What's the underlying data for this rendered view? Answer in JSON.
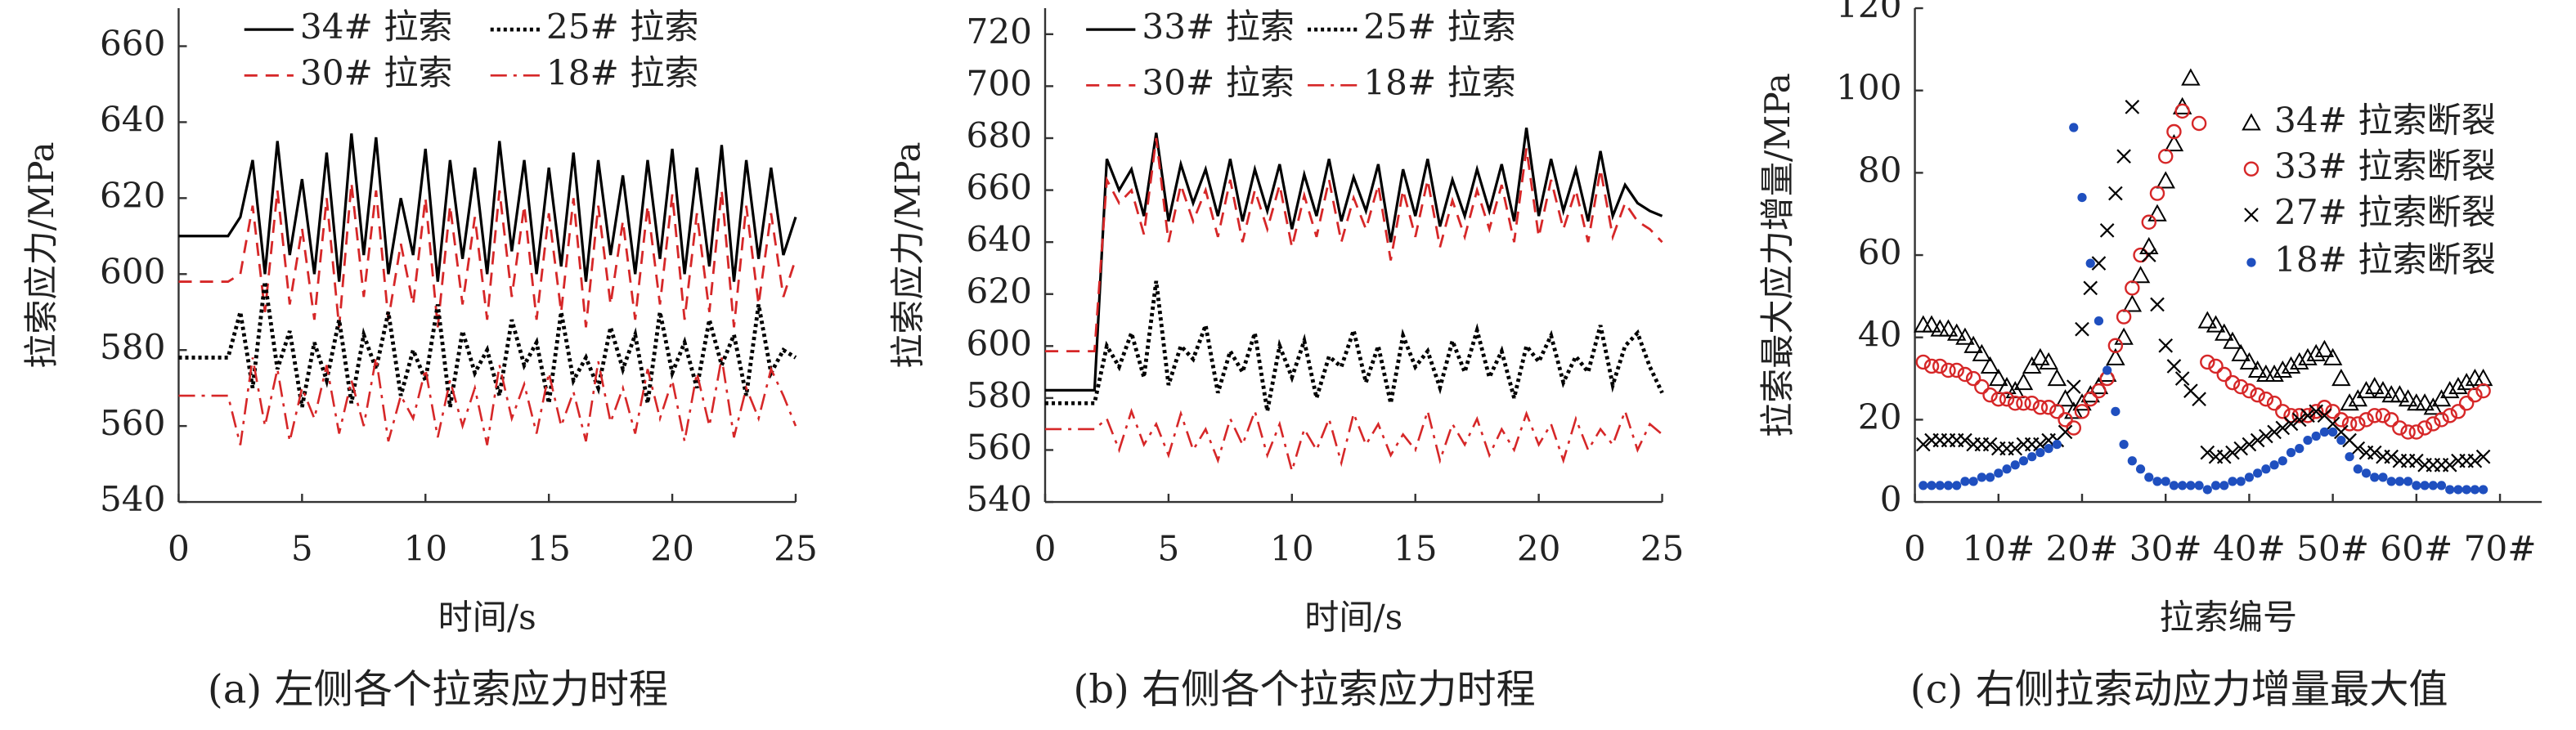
{
  "chart_data": [
    {
      "type": "line",
      "caption": "(a) 左侧各个拉索应力时程",
      "xlabel": "时间/s",
      "ylabel": "拉索应力/MPa",
      "xlim": [
        0,
        25
      ],
      "xticks": [
        0,
        5,
        10,
        15,
        20,
        25
      ],
      "ylim": [
        540,
        670
      ],
      "yticks": [
        540,
        560,
        580,
        600,
        620,
        640,
        660
      ],
      "x": [
        0,
        0.5,
        1,
        1.5,
        2,
        2.5,
        3,
        3.5,
        4,
        4.5,
        5,
        5.5,
        6,
        6.5,
        7,
        7.5,
        8,
        8.5,
        9,
        9.5,
        10,
        10.5,
        11,
        11.5,
        12,
        12.5,
        13,
        13.5,
        14,
        14.5,
        15,
        15.5,
        16,
        16.5,
        17,
        17.5,
        18,
        18.5,
        19,
        19.5,
        20,
        20.5,
        21,
        21.5,
        22,
        22.5,
        23,
        23.5,
        24,
        24.5,
        25
      ],
      "series": [
        {
          "name": "34# 拉索",
          "color": "#000000",
          "dash": "solid",
          "values": [
            610,
            610,
            610,
            610,
            610,
            615,
            630,
            600,
            635,
            605,
            625,
            600,
            632,
            598,
            637,
            605,
            636,
            600,
            620,
            605,
            633,
            598,
            630,
            604,
            628,
            600,
            635,
            606,
            630,
            600,
            628,
            602,
            632,
            598,
            630,
            605,
            626,
            600,
            630,
            604,
            633,
            600,
            628,
            602,
            634,
            598,
            630,
            604,
            628,
            605,
            615
          ]
        },
        {
          "name": "30# 拉索",
          "color": "#d62728",
          "dash": "dashed",
          "values": [
            598,
            598,
            598,
            598,
            598,
            600,
            618,
            590,
            622,
            592,
            612,
            588,
            620,
            586,
            624,
            594,
            622,
            588,
            608,
            592,
            620,
            586,
            618,
            592,
            615,
            588,
            622,
            594,
            618,
            588,
            616,
            590,
            620,
            586,
            618,
            592,
            614,
            588,
            618,
            592,
            621,
            588,
            616,
            590,
            622,
            586,
            618,
            592,
            616,
            594,
            604
          ]
        },
        {
          "name": "25# 拉索",
          "color": "#000000",
          "dash": "dotted",
          "values": [
            578,
            578,
            578,
            578,
            578,
            590,
            570,
            598,
            575,
            585,
            565,
            582,
            572,
            588,
            566,
            584,
            575,
            590,
            568,
            580,
            572,
            592,
            565,
            585,
            574,
            580,
            568,
            588,
            576,
            582,
            566,
            590,
            572,
            578,
            570,
            586,
            575,
            584,
            566,
            590,
            574,
            582,
            570,
            588,
            576,
            584,
            568,
            592,
            574,
            580,
            578
          ]
        },
        {
          "name": "18# 拉索",
          "color": "#d62728",
          "dash": "dashdot",
          "values": [
            568,
            568,
            568,
            568,
            568,
            555,
            578,
            560,
            575,
            556,
            570,
            562,
            576,
            558,
            572,
            560,
            578,
            556,
            568,
            562,
            575,
            557,
            572,
            560,
            570,
            555,
            576,
            562,
            571,
            558,
            574,
            560,
            569,
            556,
            577,
            561,
            570,
            558,
            575,
            562,
            572,
            556,
            574,
            560,
            578,
            557,
            570,
            562,
            575,
            568,
            560
          ]
        }
      ]
    },
    {
      "type": "line",
      "caption": "(b) 右侧各个拉索应力时程",
      "xlabel": "时间/s",
      "ylabel": "拉索应力/MPa",
      "xlim": [
        0,
        25
      ],
      "xticks": [
        0,
        5,
        10,
        15,
        20,
        25
      ],
      "ylim": [
        540,
        730
      ],
      "yticks": [
        540,
        560,
        580,
        600,
        620,
        640,
        660,
        680,
        700,
        720
      ],
      "x": [
        0,
        0.5,
        1,
        1.5,
        2,
        2.5,
        3,
        3.5,
        4,
        4.5,
        5,
        5.5,
        6,
        6.5,
        7,
        7.5,
        8,
        8.5,
        9,
        9.5,
        10,
        10.5,
        11,
        11.5,
        12,
        12.5,
        13,
        13.5,
        14,
        14.5,
        15,
        15.5,
        16,
        16.5,
        17,
        17.5,
        18,
        18.5,
        19,
        19.5,
        20,
        20.5,
        21,
        21.5,
        22,
        22.5,
        23,
        23.5,
        24,
        24.5,
        25
      ],
      "series": [
        {
          "name": "33# 拉索",
          "color": "#000000",
          "dash": "solid",
          "values": [
            583,
            583,
            583,
            583,
            583,
            672,
            660,
            668,
            650,
            682,
            648,
            670,
            655,
            668,
            650,
            672,
            648,
            668,
            652,
            670,
            645,
            666,
            650,
            672,
            648,
            665,
            652,
            670,
            640,
            668,
            650,
            672,
            646,
            664,
            650,
            668,
            652,
            670,
            648,
            684,
            650,
            672,
            652,
            668,
            648,
            675,
            650,
            662,
            655,
            652,
            650
          ]
        },
        {
          "name": "30# 拉索",
          "color": "#d62728",
          "dash": "dashed",
          "values": [
            598,
            598,
            598,
            598,
            598,
            664,
            655,
            660,
            643,
            680,
            640,
            662,
            648,
            660,
            642,
            664,
            640,
            660,
            645,
            662,
            638,
            658,
            642,
            664,
            640,
            657,
            645,
            662,
            633,
            660,
            642,
            664,
            638,
            656,
            642,
            660,
            645,
            662,
            640,
            676,
            642,
            664,
            645,
            660,
            640,
            668,
            642,
            655,
            648,
            645,
            640
          ]
        },
        {
          "name": "25# 拉索",
          "color": "#000000",
          "dash": "dotted",
          "values": [
            578,
            578,
            578,
            578,
            578,
            600,
            592,
            605,
            588,
            625,
            585,
            600,
            595,
            608,
            582,
            598,
            590,
            605,
            575,
            600,
            588,
            602,
            580,
            596,
            592,
            606,
            586,
            600,
            578,
            604,
            592,
            598,
            584,
            602,
            590,
            606,
            588,
            598,
            580,
            600,
            594,
            604,
            586,
            596,
            590,
            608,
            585,
            600,
            605,
            592,
            582
          ]
        },
        {
          "name": "18# 拉索",
          "color": "#d62728",
          "dash": "dashdot",
          "values": [
            568,
            568,
            568,
            568,
            568,
            572,
            560,
            575,
            562,
            570,
            558,
            574,
            560,
            568,
            556,
            572,
            562,
            575,
            558,
            570,
            552,
            568,
            560,
            572,
            555,
            574,
            562,
            570,
            558,
            566,
            560,
            575,
            556,
            570,
            562,
            572,
            558,
            568,
            560,
            574,
            562,
            570,
            556,
            572,
            560,
            568,
            562,
            575,
            560,
            570,
            566
          ]
        }
      ]
    },
    {
      "type": "scatter",
      "caption": "(c) 右侧拉索动应力增量最大值",
      "xlabel": "拉索编号",
      "ylabel": "拉索最大应力增量/MPa",
      "xlim": [
        0,
        75
      ],
      "xticks": [
        0,
        {
          "value": 10,
          "label": "10#"
        },
        {
          "value": 20,
          "label": "20#"
        },
        {
          "value": 30,
          "label": "30#"
        },
        {
          "value": 40,
          "label": "40#"
        },
        {
          "value": 50,
          "label": "50#"
        },
        {
          "value": 60,
          "label": "60#"
        },
        {
          "value": 70,
          "label": "70#"
        }
      ],
      "ylim": [
        0,
        120
      ],
      "yticks": [
        0,
        20,
        40,
        60,
        80,
        100,
        120
      ],
      "x": [
        1,
        2,
        3,
        4,
        5,
        6,
        7,
        8,
        9,
        10,
        11,
        12,
        13,
        14,
        15,
        16,
        17,
        18,
        19,
        20,
        21,
        22,
        23,
        24,
        25,
        26,
        27,
        28,
        29,
        30,
        31,
        32,
        33,
        34,
        35,
        36,
        37,
        38,
        39,
        40,
        41,
        42,
        43,
        44,
        45,
        46,
        47,
        48,
        49,
        50,
        51,
        52,
        53,
        54,
        55,
        56,
        57,
        58,
        59,
        60,
        61,
        62,
        63,
        64,
        65,
        66,
        67,
        68
      ],
      "series": [
        {
          "name": "34# 拉索断裂",
          "color": "#000000",
          "marker": "triangle",
          "values": [
            43,
            43,
            42,
            42,
            41,
            40,
            38,
            36,
            33,
            30,
            28,
            27,
            29,
            33,
            35,
            34,
            30,
            25,
            22,
            24,
            26,
            28,
            31,
            35,
            40,
            48,
            55,
            62,
            70,
            78,
            87,
            96,
            103,
            null,
            44,
            43,
            41,
            39,
            36,
            34,
            32,
            31,
            31,
            32,
            33,
            34,
            35,
            36,
            37,
            35,
            30,
            24,
            25,
            27,
            28,
            27,
            26,
            26,
            25,
            24,
            24,
            23,
            25,
            27,
            28,
            29,
            30,
            30
          ]
        },
        {
          "name": "33# 拉索断裂",
          "color": "#d62728",
          "marker": "circle",
          "values": [
            34,
            33,
            33,
            32,
            32,
            31,
            30,
            28,
            26,
            25,
            25,
            24,
            24,
            24,
            23,
            23,
            22,
            20,
            18,
            22,
            25,
            27,
            30,
            38,
            45,
            52,
            60,
            68,
            75,
            84,
            90,
            95,
            null,
            92,
            34,
            33,
            31,
            29,
            28,
            27,
            26,
            25,
            24,
            22,
            21,
            21,
            21,
            22,
            23,
            22,
            20,
            19,
            19,
            20,
            21,
            21,
            20,
            18,
            17,
            17,
            18,
            19,
            20,
            21,
            22,
            24,
            26,
            27
          ]
        },
        {
          "name": "27# 拉索断裂",
          "color": "#000000",
          "marker": "x",
          "values": [
            14,
            15,
            15,
            15,
            15,
            15,
            14,
            14,
            14,
            13,
            13,
            13,
            14,
            14,
            14,
            15,
            15,
            17,
            28,
            42,
            52,
            58,
            66,
            75,
            84,
            96,
            null,
            60,
            48,
            38,
            33,
            30,
            27,
            25,
            12,
            11,
            11,
            12,
            13,
            14,
            15,
            16,
            17,
            18,
            19,
            20,
            21,
            22,
            21,
            19,
            17,
            15,
            13,
            12,
            12,
            11,
            11,
            10,
            10,
            10,
            9,
            9,
            9,
            9,
            10,
            10,
            10,
            11
          ]
        },
        {
          "name": "18# 拉索断裂",
          "color": "#1f4fbf",
          "marker": "dot",
          "values": [
            4,
            4,
            4,
            4,
            4,
            5,
            5,
            6,
            6,
            7,
            8,
            9,
            10,
            11,
            12,
            13,
            14,
            null,
            91,
            74,
            58,
            44,
            32,
            22,
            14,
            10,
            8,
            6,
            5,
            5,
            4,
            4,
            4,
            4,
            3,
            4,
            4,
            5,
            5,
            6,
            7,
            8,
            9,
            10,
            12,
            13,
            15,
            16,
            17,
            17,
            15,
            11,
            8,
            7,
            6,
            6,
            5,
            5,
            5,
            4,
            4,
            4,
            4,
            3,
            3,
            3,
            3,
            3
          ]
        }
      ]
    }
  ]
}
